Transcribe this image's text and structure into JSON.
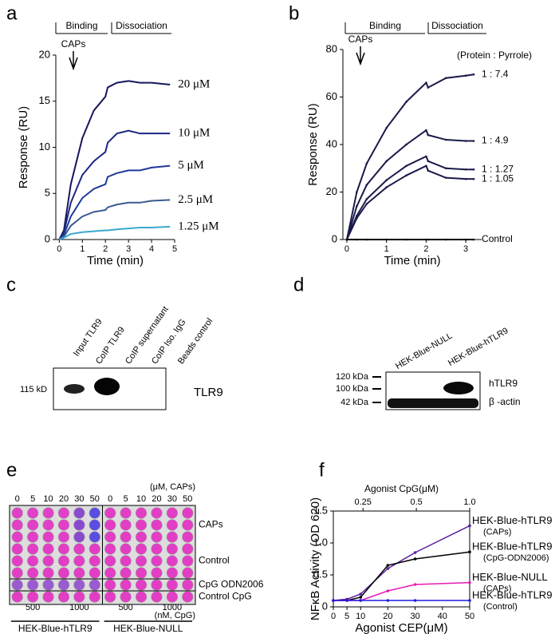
{
  "chart_data": [
    {
      "panel": "a",
      "type": "line",
      "ylabel": "Response (RU)",
      "xlabel": "Time (min)",
      "phases": [
        "Binding",
        "Dissociation"
      ],
      "arrow_label": "CAPs",
      "xlim": [
        -0.15,
        5
      ],
      "xticks": [
        0,
        1,
        2,
        3,
        4,
        5
      ],
      "ylim": [
        0,
        20
      ],
      "yticks": [
        0,
        5,
        10,
        15,
        20
      ],
      "x": [
        0,
        0.2,
        0.5,
        1,
        1.5,
        2,
        2.1,
        2.5,
        3,
        3.5,
        4,
        4.8
      ],
      "series": [
        {
          "name": "20 μM",
          "color": "#16165e",
          "values": [
            0,
            1,
            6,
            11,
            14,
            15.5,
            16.5,
            17,
            17.2,
            17,
            17,
            16.8
          ]
        },
        {
          "name": "10 μM",
          "color": "#1c2680",
          "values": [
            0,
            0.8,
            4,
            7,
            8.5,
            9.5,
            10.5,
            11.5,
            11.8,
            11.5,
            11.5,
            11.5
          ]
        },
        {
          "name": "5 μM",
          "color": "#1e3a9a",
          "values": [
            0,
            0.5,
            2.5,
            4.5,
            5.5,
            6,
            6.8,
            7.2,
            7.5,
            7.5,
            7.8,
            8
          ]
        },
        {
          "name": "2.5 μM",
          "color": "#3a5a90",
          "values": [
            0,
            0.3,
            1.5,
            2.5,
            3,
            3.2,
            3.5,
            3.8,
            4,
            4,
            4.2,
            4.3
          ]
        },
        {
          "name": "1.25 μM",
          "color": "#3aa8cc",
          "values": [
            0,
            0.2,
            0.6,
            0.8,
            0.9,
            1,
            1,
            1.1,
            1.2,
            1.3,
            1.3,
            1.4
          ]
        }
      ]
    },
    {
      "panel": "b",
      "type": "line",
      "ylabel": "Response (RU)",
      "xlabel": "Time (min)",
      "phases": [
        "Binding",
        "Dissociation"
      ],
      "arrow_label": "CAPs",
      "legend_title": "(Protein : Pyrrole)",
      "xlim": [
        -0.1,
        3.4
      ],
      "xticks": [
        0,
        1,
        2,
        3
      ],
      "ylim": [
        0,
        80
      ],
      "yticks": [
        0,
        20,
        40,
        60,
        80
      ],
      "x": [
        0,
        0.25,
        0.5,
        1,
        1.5,
        2,
        2.05,
        2.5,
        3,
        3.2
      ],
      "series": [
        {
          "name": "1 : 7.4",
          "color": "#1a1a4a",
          "values": [
            0,
            20,
            32,
            47,
            58,
            66,
            64,
            68,
            69,
            69.5
          ]
        },
        {
          "name": "1 : 4.9",
          "color": "#1a1a4a",
          "values": [
            0,
            14,
            23,
            33,
            40,
            46,
            44,
            42,
            41.5,
            41.5
          ]
        },
        {
          "name": "1 : 1.27",
          "color": "#1a1a4a",
          "values": [
            0,
            10,
            17,
            25,
            31,
            35,
            33,
            30,
            29.5,
            29.5
          ]
        },
        {
          "name": "1 : 1.05",
          "color": "#1a1a4a",
          "values": [
            0,
            9,
            15,
            22,
            27,
            31,
            29,
            26,
            25.5,
            25.5
          ]
        },
        {
          "name": "Control",
          "color": "#000000",
          "values": [
            0,
            0,
            0,
            0,
            0,
            0,
            0,
            0,
            0,
            0
          ]
        }
      ]
    },
    {
      "panel": "f",
      "type": "line",
      "ylabel": "NFκB Activity (OD 620)",
      "xlabel": "Agonist CEP(μM)",
      "x2label": "Agonist CpG(μM)",
      "x2scale": "log",
      "x2lim": [
        0.17,
        1
      ],
      "x2ticks": [
        0.25,
        0.5,
        {
          "value": 1,
          "label": "1.0"
        }
      ],
      "xlim": [
        0,
        50
      ],
      "xticks": [
        0,
        5,
        10,
        20,
        30,
        40,
        50
      ],
      "ylim": [
        0,
        1.5
      ],
      "yticks": [
        0,
        0.5,
        {
          "value": 1,
          "label": "1.0"
        },
        1.5
      ],
      "x": [
        0,
        5,
        10,
        20,
        30,
        50
      ],
      "series": [
        {
          "name": "HEK-Blue-hTLR9",
          "subname": "(CAPs)",
          "color": "#5b1e9e",
          "values": [
            0.1,
            0.12,
            0.2,
            0.6,
            0.85,
            1.27
          ]
        },
        {
          "name": "HEK-Blue-hTLR9",
          "subname": "(CpG-ODN2006)",
          "color": "#000000",
          "values": [
            0.1,
            0.1,
            0.15,
            0.65,
            0.75,
            0.86
          ]
        },
        {
          "name": "HEK-Blue-NULL",
          "subname": "(CAPs)",
          "color": "#e61ab4",
          "values": [
            0.1,
            0.1,
            0.1,
            0.25,
            0.35,
            0.38
          ]
        },
        {
          "name": "HEK-Blue-hTLR9",
          "subname": "(Control)",
          "color": "#1f1fe0",
          "values": [
            0.1,
            0.1,
            0.1,
            0.1,
            0.1,
            0.1
          ]
        }
      ]
    }
  ],
  "blots": [
    {
      "panel": "c",
      "lanes": [
        "Input TLR9",
        "CoIP TLR9",
        "CoIP supernatant",
        "CoIP Iso. IgG",
        "Beads control"
      ],
      "markers": [
        "115 kD"
      ],
      "targets": [
        "TLR9"
      ]
    },
    {
      "panel": "d",
      "lanes": [
        "HEK-Blue-NULL",
        "HEK-Blue-hTLR9"
      ],
      "markers": [
        "120 kDa",
        "100 kDa",
        "42 kDa"
      ],
      "targets": [
        "hTLR9",
        "β -actin"
      ]
    }
  ],
  "plate": {
    "panel": "e",
    "caps_unit": "(μM, CAPs)",
    "cpg_unit": "(nM, CpG)",
    "groups": [
      {
        "name": "HEK-Blue-hTLR9",
        "caps_doses": [
          0,
          5,
          10,
          20,
          30,
          50
        ],
        "cpg_doses": [
          500,
          1000
        ]
      },
      {
        "name": "HEK-Blue-NULL",
        "caps_doses": [
          0,
          5,
          10,
          20,
          30,
          50
        ],
        "cpg_doses": [
          500,
          1000
        ]
      }
    ],
    "row_labels": [
      "CAPs",
      "Control",
      "CpG ODN2006",
      "Control CpG"
    ]
  }
}
